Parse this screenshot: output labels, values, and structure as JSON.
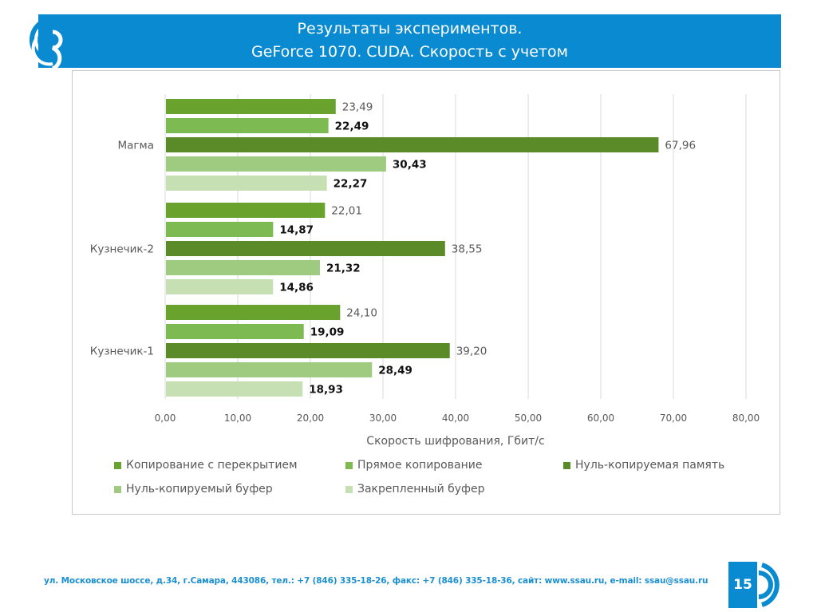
{
  "slide": {
    "title_line1": "Результаты экспериментов.",
    "title_line2": "GeForce 1070. CUDA. Скорость с учетом",
    "footer": "ул. Московское шоссе, д.34, г.Самара, 443086, тел.: +7 (846) 335-18-26, факс: +7 (846) 335-18-36, сайт: www.ssau.ru, e-mail: ssau@ssau.ru",
    "page_number": "15",
    "brand_color": "#0a8bd1",
    "logo_icon": "ssau-logo-icon"
  },
  "chart_data": {
    "type": "bar",
    "orientation": "horizontal",
    "title": "",
    "xlabel": "Скорость шифрования, Гбит/с",
    "ylabel": "",
    "xlim": [
      0,
      80
    ],
    "x_ticks": [
      "0,00",
      "10,00",
      "20,00",
      "30,00",
      "40,00",
      "50,00",
      "60,00",
      "70,00",
      "80,00"
    ],
    "x_tick_values": [
      0,
      10,
      20,
      30,
      40,
      50,
      60,
      70,
      80
    ],
    "grid": true,
    "legend_position": "bottom",
    "categories": [
      "Магма",
      "Кузнечик-2",
      "Кузнечик-1"
    ],
    "series": [
      {
        "name": "Копирование с перекрытием",
        "color": "#6aa22e",
        "values": [
          23.49,
          22.01,
          24.1
        ],
        "labels": [
          "23,49",
          "22,01",
          "24,10"
        ],
        "label_bold": false
      },
      {
        "name": "Прямое копирование",
        "color": "#7dba52",
        "values": [
          22.49,
          14.87,
          19.09
        ],
        "labels": [
          "22,49",
          "14,87",
          "19,09"
        ],
        "label_bold": true
      },
      {
        "name": "Нуль-копируемая память",
        "color": "#5b8a28",
        "values": [
          67.96,
          38.55,
          39.2
        ],
        "labels": [
          "67,96",
          "38,55",
          "39,20"
        ],
        "label_bold": false
      },
      {
        "name": "Нуль-копируемый буфер",
        "color": "#9fcb80",
        "values": [
          30.43,
          21.32,
          28.49
        ],
        "labels": [
          "30,43",
          "21,32",
          "28,49"
        ],
        "label_bold": true
      },
      {
        "name": "Закрепленный буфер",
        "color": "#c6e0b4",
        "values": [
          22.27,
          14.86,
          18.93
        ],
        "labels": [
          "22,27",
          "14,86",
          "18,93"
        ],
        "label_bold": true
      }
    ]
  }
}
